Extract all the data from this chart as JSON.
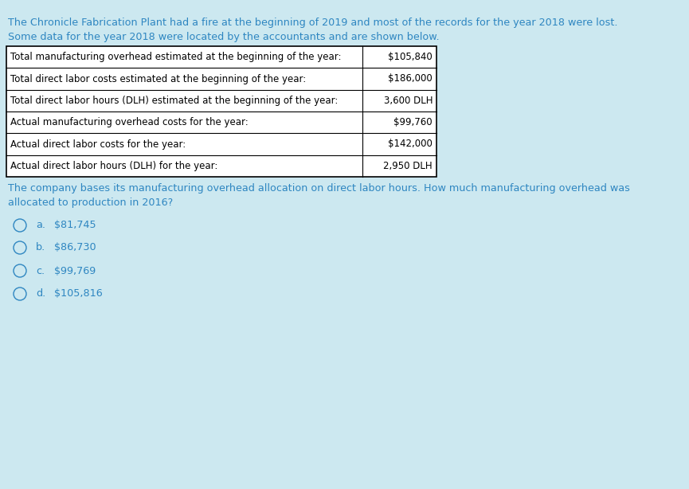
{
  "bg_color": "#cce8f0",
  "text_color": "#2e86c1",
  "table_text_color": "#000000",
  "intro_line1": "The Chronicle Fabrication Plant had a fire at the beginning of 2019 and most of the records for the year 2018 were lost.",
  "intro_line2": "Some data for the year 2018 were located by the accountants and are shown below.",
  "table_rows": [
    [
      "Total manufacturing overhead estimated at the beginning of the year:",
      "$105,840"
    ],
    [
      "Total direct labor costs estimated at the beginning of the year:",
      "$186,000"
    ],
    [
      "Total direct labor hours (DLH) estimated at the beginning of the year:",
      "3,600 DLH"
    ],
    [
      "Actual manufacturing overhead costs for the year:",
      "$99,760"
    ],
    [
      "Actual direct labor costs for the year:",
      "$142,000"
    ],
    [
      "Actual direct labor hours (DLH) for the year:",
      "2,950 DLH"
    ]
  ],
  "question_line1": "The company bases its manufacturing overhead allocation on direct labor hours. How much manufacturing overhead was",
  "question_line2": "allocated to production in 2016?",
  "choices": [
    [
      "a.",
      "$81,745"
    ],
    [
      "b.",
      "$86,730"
    ],
    [
      "c.",
      "$99,769"
    ],
    [
      "d.",
      "$105,816"
    ]
  ],
  "figsize": [
    8.65,
    6.14
  ],
  "dpi": 100
}
